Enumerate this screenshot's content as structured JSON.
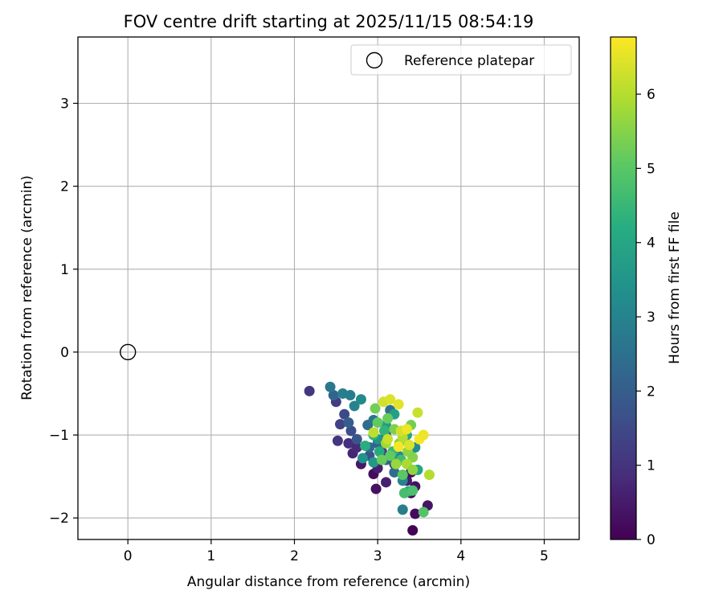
{
  "chart_data": {
    "type": "scatter",
    "title": "FOV centre drift starting at 2025/11/15 08:54:19",
    "xlabel": "Angular distance from reference (arcmin)",
    "ylabel": "Rotation from reference (arcmin)",
    "xlim": [
      -0.6,
      5.42
    ],
    "ylim": [
      -2.26,
      3.8
    ],
    "xticks": [
      0,
      1,
      2,
      3,
      4,
      5
    ],
    "xtick_labels": [
      "0",
      "1",
      "2",
      "3",
      "4",
      "5"
    ],
    "yticks": [
      -2,
      -1,
      0,
      1,
      2,
      3
    ],
    "ytick_labels": [
      "−2",
      "−1",
      "0",
      "1",
      "2",
      "3"
    ],
    "grid": true,
    "legend": {
      "position": "top-right",
      "entries": [
        "Reference platepar"
      ]
    },
    "reference_point": {
      "x": 0,
      "y": 0,
      "label": "Reference platepar"
    },
    "colorbar": {
      "label": "Hours from first FF file",
      "colormap": "viridis",
      "range": [
        0,
        6.77
      ],
      "ticks": [
        0,
        1,
        2,
        3,
        4,
        5,
        6
      ],
      "tick_labels": [
        "0",
        "1",
        "2",
        "3",
        "4",
        "5",
        "6"
      ]
    },
    "series": [
      {
        "points": [
          [
            3.42,
            -2.15,
            0.05
          ],
          [
            2.98,
            -1.65,
            0.3
          ],
          [
            3.45,
            -1.95,
            0.2
          ],
          [
            3.6,
            -1.85,
            0.4
          ],
          [
            3.45,
            -1.62,
            0.35
          ],
          [
            3.35,
            -1.55,
            0.5
          ],
          [
            3.1,
            -1.57,
            0.6
          ],
          [
            2.95,
            -1.47,
            0.2
          ],
          [
            2.8,
            -1.35,
            0.45
          ],
          [
            2.7,
            -1.22,
            0.7
          ],
          [
            2.65,
            -1.1,
            0.9
          ],
          [
            2.52,
            -1.07,
            1.0
          ],
          [
            2.18,
            -0.47,
            1.1
          ],
          [
            2.5,
            -0.6,
            1.2
          ],
          [
            2.55,
            -0.87,
            1.3
          ],
          [
            2.6,
            -0.75,
            1.5
          ],
          [
            2.68,
            -0.95,
            1.6
          ],
          [
            2.75,
            -1.15,
            0.8
          ],
          [
            3.0,
            -1.4,
            0.55
          ],
          [
            3.4,
            -1.7,
            0.15
          ],
          [
            3.4,
            -1.45,
            0.25
          ],
          [
            2.9,
            -1.25,
            1.7
          ],
          [
            3.2,
            -1.35,
            1.4
          ],
          [
            2.47,
            -0.52,
            2.2
          ],
          [
            2.65,
            -0.85,
            2.0
          ],
          [
            2.75,
            -1.05,
            1.8
          ],
          [
            2.88,
            -0.88,
            2.4
          ],
          [
            2.95,
            -0.82,
            2.6
          ],
          [
            3.05,
            -1.2,
            1.2
          ],
          [
            3.1,
            -1.0,
            1.9
          ],
          [
            3.15,
            -0.7,
            2.5
          ],
          [
            2.43,
            -0.42,
            2.7
          ],
          [
            2.58,
            -0.5,
            2.9
          ],
          [
            2.67,
            -0.52,
            2.8
          ],
          [
            2.72,
            -0.65,
            3.0
          ],
          [
            2.8,
            -0.57,
            3.2
          ],
          [
            2.9,
            -1.15,
            2.3
          ],
          [
            3.0,
            -1.1,
            2.1
          ],
          [
            3.1,
            -1.3,
            2.2
          ],
          [
            3.2,
            -1.45,
            2.4
          ],
          [
            3.3,
            -1.9,
            2.8
          ],
          [
            3.3,
            -1.55,
            3.0
          ],
          [
            3.25,
            -1.25,
            3.1
          ],
          [
            2.82,
            -1.28,
            3.4
          ],
          [
            2.95,
            -1.33,
            3.6
          ],
          [
            3.0,
            -1.05,
            3.5
          ],
          [
            3.1,
            -0.88,
            3.7
          ],
          [
            3.2,
            -0.75,
            3.8
          ],
          [
            3.35,
            -1.0,
            3.9
          ],
          [
            3.45,
            -1.15,
            3.3
          ],
          [
            3.48,
            -1.42,
            3.9
          ],
          [
            3.37,
            -1.68,
            4.0
          ],
          [
            3.02,
            -1.2,
            4.1
          ],
          [
            2.95,
            -1.0,
            4.3
          ],
          [
            2.85,
            -1.13,
            4.2
          ],
          [
            3.08,
            -0.95,
            4.4
          ],
          [
            3.18,
            -1.2,
            4.5
          ],
          [
            3.28,
            -1.3,
            4.6
          ],
          [
            3.32,
            -1.7,
            4.7
          ],
          [
            3.42,
            -1.67,
            4.8
          ],
          [
            3.55,
            -1.93,
            4.9
          ],
          [
            3.3,
            -1.48,
            5.0
          ],
          [
            3.15,
            -1.25,
            5.1
          ],
          [
            3.05,
            -1.3,
            5.2
          ],
          [
            3.0,
            -0.85,
            5.1
          ],
          [
            2.97,
            -0.68,
            5.3
          ],
          [
            3.12,
            -0.8,
            5.2
          ],
          [
            3.2,
            -0.93,
            5.4
          ],
          [
            3.26,
            -1.1,
            5.5
          ],
          [
            3.36,
            -1.2,
            5.6
          ],
          [
            3.4,
            -0.88,
            5.3
          ],
          [
            3.42,
            -1.27,
            5.5
          ],
          [
            3.1,
            -1.1,
            5.8
          ],
          [
            3.22,
            -1.35,
            5.7
          ],
          [
            3.35,
            -1.35,
            5.9
          ],
          [
            3.42,
            -1.42,
            5.6
          ],
          [
            3.62,
            -1.48,
            6.0
          ],
          [
            3.48,
            -0.73,
            6.2
          ],
          [
            3.3,
            -1.03,
            6.0
          ],
          [
            2.95,
            -0.97,
            6.1
          ],
          [
            3.07,
            -0.6,
            6.3
          ],
          [
            3.15,
            -0.57,
            6.4
          ],
          [
            3.25,
            -0.63,
            6.5
          ],
          [
            3.28,
            -0.95,
            6.3
          ],
          [
            3.35,
            -0.93,
            6.6
          ],
          [
            3.5,
            -1.05,
            6.7
          ],
          [
            3.55,
            -1.0,
            6.6
          ],
          [
            3.25,
            -1.14,
            6.7
          ],
          [
            3.38,
            -1.12,
            6.4
          ],
          [
            3.12,
            -1.05,
            6.2
          ]
        ]
      }
    ]
  }
}
